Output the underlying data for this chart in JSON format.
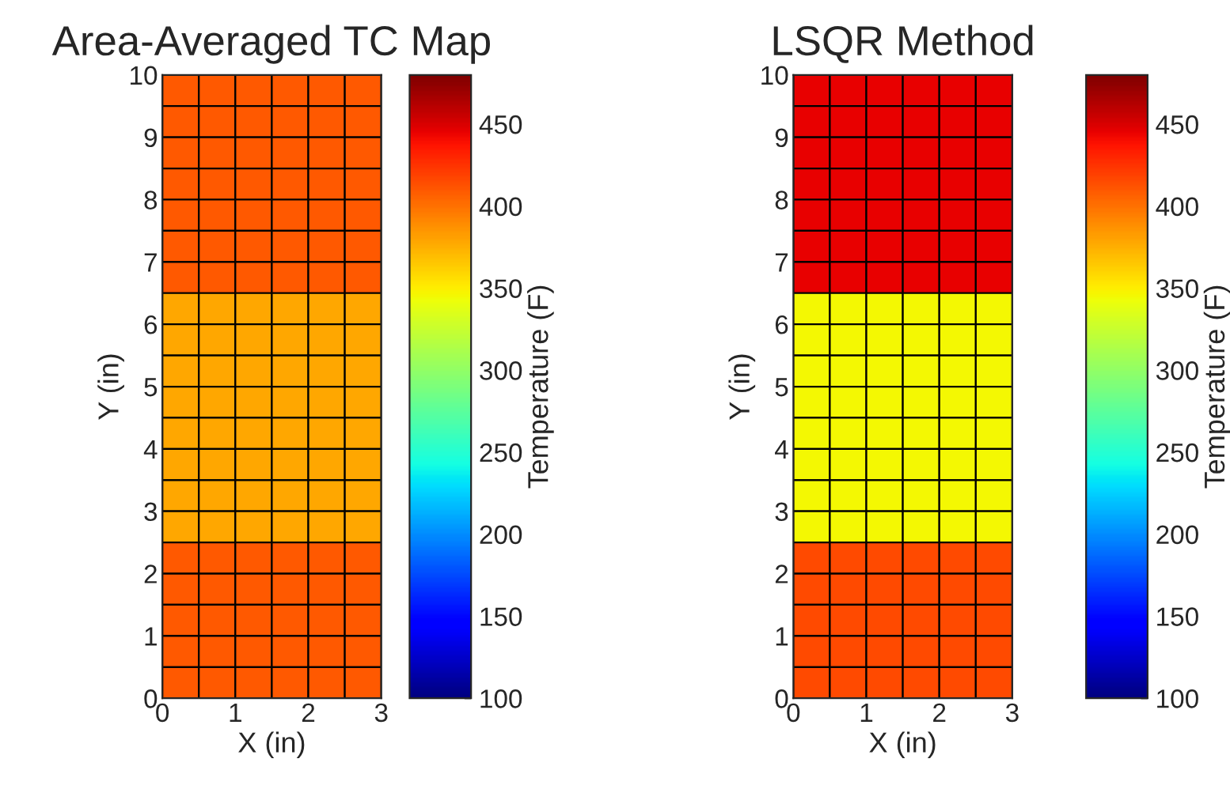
{
  "chart_data": [
    {
      "type": "heatmap",
      "title": "Area-Averaged TC Map",
      "xlabel": "X (in)",
      "ylabel": "Y (in)",
      "clabel": "Temperature (F)",
      "xlim": [
        0,
        3
      ],
      "xticks": [
        0,
        1,
        2,
        3
      ],
      "ylim": [
        0,
        10
      ],
      "yticks": [
        0,
        1,
        2,
        3,
        4,
        5,
        6,
        7,
        8,
        9,
        10
      ],
      "clim": [
        100,
        480
      ],
      "cticks": [
        100,
        150,
        200,
        250,
        300,
        350,
        400,
        450
      ],
      "cells": [
        [
          410,
          410,
          410,
          410,
          410,
          410
        ],
        [
          410,
          410,
          410,
          410,
          410,
          410
        ],
        [
          410,
          410,
          410,
          410,
          410,
          410
        ],
        [
          410,
          410,
          410,
          410,
          410,
          410
        ],
        [
          410,
          410,
          410,
          410,
          410,
          410
        ],
        [
          410,
          410,
          410,
          410,
          410,
          410
        ],
        [
          410,
          410,
          410,
          410,
          410,
          410
        ],
        [
          378,
          378,
          378,
          378,
          378,
          378
        ],
        [
          378,
          378,
          378,
          378,
          378,
          378
        ],
        [
          378,
          378,
          378,
          378,
          378,
          378
        ],
        [
          378,
          378,
          378,
          378,
          378,
          378
        ],
        [
          378,
          378,
          378,
          378,
          378,
          378
        ],
        [
          378,
          378,
          378,
          378,
          378,
          378
        ],
        [
          378,
          378,
          378,
          378,
          378,
          378
        ],
        [
          378,
          378,
          378,
          378,
          378,
          378
        ],
        [
          410,
          410,
          410,
          410,
          410,
          410
        ],
        [
          410,
          410,
          410,
          410,
          410,
          410
        ],
        [
          410,
          410,
          410,
          410,
          410,
          410
        ],
        [
          410,
          410,
          410,
          410,
          410,
          410
        ],
        [
          410,
          410,
          410,
          410,
          410,
          410
        ]
      ]
    },
    {
      "type": "heatmap",
      "title": "LSQR Method",
      "xlabel": "X (in)",
      "ylabel": "Y (in)",
      "clabel": "Temperature (F)",
      "xlim": [
        0,
        3
      ],
      "xticks": [
        0,
        1,
        2,
        3
      ],
      "ylim": [
        0,
        10
      ],
      "yticks": [
        0,
        1,
        2,
        3,
        4,
        5,
        6,
        7,
        8,
        9,
        10
      ],
      "clim": [
        100,
        480
      ],
      "cticks": [
        100,
        150,
        200,
        250,
        300,
        350,
        400,
        450
      ],
      "cells": [
        [
          445,
          445,
          445,
          445,
          445,
          445
        ],
        [
          445,
          445,
          445,
          445,
          445,
          445
        ],
        [
          445,
          445,
          445,
          445,
          445,
          445
        ],
        [
          445,
          445,
          445,
          445,
          445,
          445
        ],
        [
          445,
          445,
          445,
          445,
          445,
          445
        ],
        [
          445,
          445,
          445,
          445,
          445,
          445
        ],
        [
          445,
          445,
          445,
          445,
          445,
          445
        ],
        [
          345,
          345,
          345,
          345,
          345,
          345
        ],
        [
          345,
          345,
          345,
          345,
          345,
          345
        ],
        [
          345,
          345,
          345,
          345,
          345,
          345
        ],
        [
          345,
          345,
          345,
          345,
          345,
          345
        ],
        [
          345,
          345,
          345,
          345,
          345,
          345
        ],
        [
          345,
          345,
          345,
          345,
          345,
          345
        ],
        [
          345,
          345,
          345,
          345,
          345,
          345
        ],
        [
          345,
          345,
          345,
          345,
          345,
          345
        ],
        [
          415,
          415,
          415,
          415,
          415,
          415
        ],
        [
          415,
          415,
          415,
          415,
          415,
          415
        ],
        [
          415,
          415,
          415,
          415,
          415,
          415
        ],
        [
          415,
          415,
          415,
          415,
          415,
          415
        ],
        [
          415,
          415,
          415,
          415,
          415,
          415
        ]
      ]
    }
  ]
}
